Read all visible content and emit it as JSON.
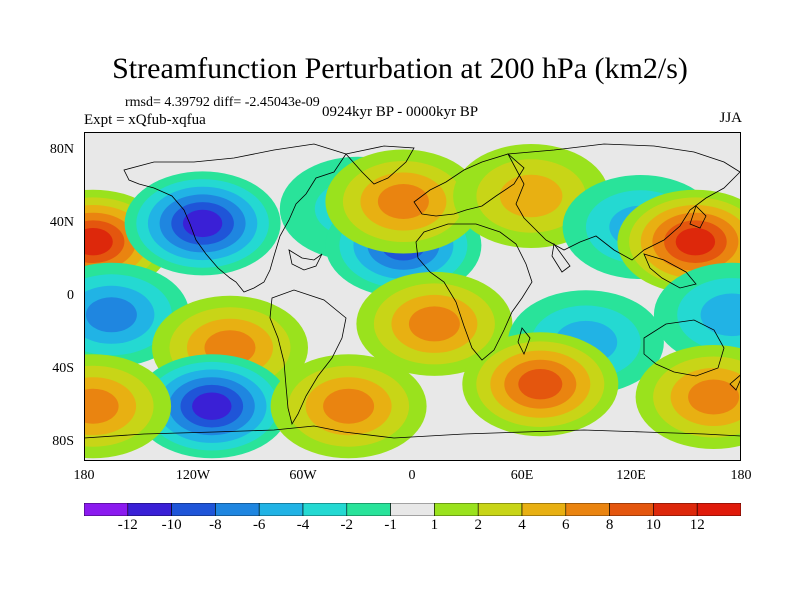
{
  "header": {
    "title": "Streamfunction Perturbation at 200 hPa (km2/s)",
    "stats": "rmsd= 4.39792 diff= -2.45043e-09",
    "expt": "Expt = xQfub-xqfua",
    "period": "0924kyr BP - 0000kyr BP",
    "season": "JJA"
  },
  "map": {
    "lat_labels": [
      "80N",
      "40N",
      "0",
      "40S",
      "80S"
    ],
    "lon_labels": [
      "180",
      "120W",
      "60W",
      "0",
      "60E",
      "120E",
      "180"
    ],
    "land_color": "#000000",
    "background_color": "#e8e8e8"
  },
  "colorbar": {
    "labels": [
      "-12",
      "-10",
      "-8",
      "-6",
      "-4",
      "-2",
      "-1",
      "1",
      "2",
      "4",
      "6",
      "8",
      "10",
      "12"
    ],
    "colors": [
      "#8b1aef",
      "#3a20d6",
      "#1f55d8",
      "#1f86e0",
      "#21b3e5",
      "#24d9d2",
      "#29e39a",
      "#e8e8e8",
      "#9ae21d",
      "#c8d517",
      "#e8b012",
      "#ea8410",
      "#e4560e",
      "#dd280b",
      "#e01a0a"
    ]
  },
  "chart_data": {
    "type": "heatmap",
    "title": "Streamfunction Perturbation at 200 hPa (km2/s)",
    "xlim": [
      -180,
      180
    ],
    "ylim": [
      -90,
      90
    ],
    "units": "km2/s",
    "levels": [
      -12,
      -10,
      -8,
      -6,
      -4,
      -2,
      -1,
      1,
      2,
      4,
      6,
      8,
      10,
      12
    ],
    "features": [
      {
        "lon": -175,
        "lat": 30,
        "value": 11
      },
      {
        "lon": -115,
        "lat": 40,
        "value": -10
      },
      {
        "lon": -30,
        "lat": 48,
        "value": -3
      },
      {
        "lon": -5,
        "lat": 28,
        "value": -8
      },
      {
        "lon": -5,
        "lat": 52,
        "value": 6
      },
      {
        "lon": 65,
        "lat": 55,
        "value": 4
      },
      {
        "lon": 125,
        "lat": 38,
        "value": -4
      },
      {
        "lon": 155,
        "lat": 30,
        "value": 11
      },
      {
        "lon": -165,
        "lat": -10,
        "value": -6
      },
      {
        "lon": -100,
        "lat": -28,
        "value": 6
      },
      {
        "lon": 12,
        "lat": -15,
        "value": 7
      },
      {
        "lon": 95,
        "lat": -25,
        "value": -4
      },
      {
        "lon": 175,
        "lat": -10,
        "value": -5
      },
      {
        "lon": -110,
        "lat": -60,
        "value": -10
      },
      {
        "lon": -35,
        "lat": -60,
        "value": 6
      },
      {
        "lon": 70,
        "lat": -48,
        "value": 9
      },
      {
        "lon": 165,
        "lat": -55,
        "value": 7
      },
      {
        "lon": -175,
        "lat": -60,
        "value": 6
      }
    ]
  }
}
